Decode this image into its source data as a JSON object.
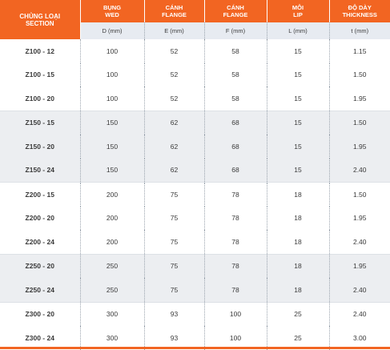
{
  "table": {
    "header": [
      {
        "line1": "CHỦNG LOẠI",
        "line2": "SECTION"
      },
      {
        "line1": "BỤNG",
        "line2": "WED"
      },
      {
        "line1": "CÁNH",
        "line2": "FLANGE"
      },
      {
        "line1": "CÁNH",
        "line2": "FLANGE"
      },
      {
        "line1": "MÔI",
        "line2": "LIP"
      },
      {
        "line1": "ĐỘ DÀY",
        "line2": "THICKNESS"
      }
    ],
    "units": [
      "D (mm)",
      "E (mm)",
      "F (mm)",
      "L (mm)",
      "t (mm)"
    ],
    "groups": [
      [
        [
          "Z100 - 12",
          "100",
          "52",
          "58",
          "15",
          "1.15"
        ],
        [
          "Z100 - 15",
          "100",
          "52",
          "58",
          "15",
          "1.50"
        ],
        [
          "Z100 - 20",
          "100",
          "52",
          "58",
          "15",
          "1.95"
        ]
      ],
      [
        [
          "Z150 - 15",
          "150",
          "62",
          "68",
          "15",
          "1.50"
        ],
        [
          "Z150 - 20",
          "150",
          "62",
          "68",
          "15",
          "1.95"
        ],
        [
          "Z150 - 24",
          "150",
          "62",
          "68",
          "15",
          "2.40"
        ]
      ],
      [
        [
          "Z200 - 15",
          "200",
          "75",
          "78",
          "18",
          "1.50"
        ],
        [
          "Z200 - 20",
          "200",
          "75",
          "78",
          "18",
          "1.95"
        ],
        [
          "Z200 - 24",
          "200",
          "75",
          "78",
          "18",
          "2.40"
        ]
      ],
      [
        [
          "Z250 - 20",
          "250",
          "75",
          "78",
          "18",
          "1.95"
        ],
        [
          "Z250 - 24",
          "250",
          "75",
          "78",
          "18",
          "2.40"
        ]
      ],
      [
        [
          "Z300 - 20",
          "300",
          "93",
          "100",
          "25",
          "2.40"
        ],
        [
          "Z300 - 24",
          "300",
          "93",
          "100",
          "25",
          "3.00"
        ]
      ]
    ]
  }
}
